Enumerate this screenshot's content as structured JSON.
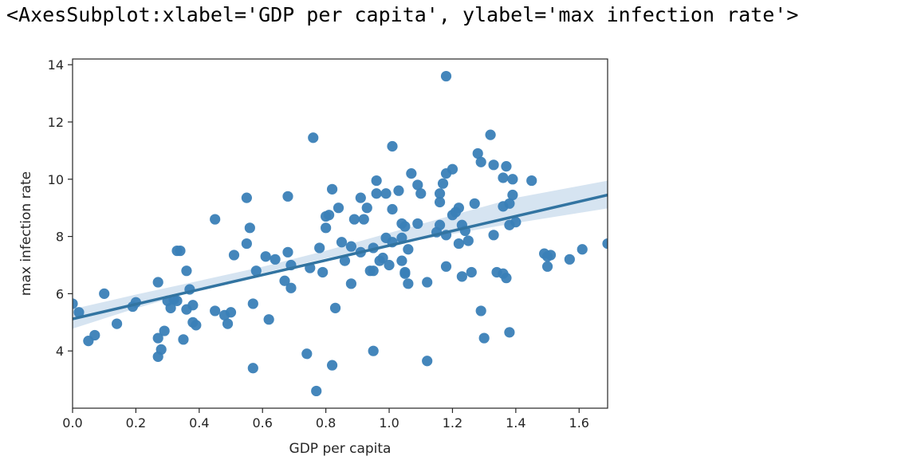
{
  "output_repr": "<AxesSubplot:xlabel='GDP per capita', ylabel='max infection rate'>",
  "chart_data": {
    "type": "scatter",
    "title": "",
    "xlabel": "GDP per capita",
    "ylabel": "max infection rate",
    "xlim": [
      0.0,
      1.69
    ],
    "ylim": [
      2.0,
      14.2
    ],
    "xticks": [
      "0.0",
      "0.2",
      "0.4",
      "0.6",
      "0.8",
      "1.0",
      "1.2",
      "1.4",
      "1.6"
    ],
    "yticks": [
      "4",
      "6",
      "8",
      "10",
      "12",
      "14"
    ],
    "grid": false,
    "legend": "none",
    "colors": {
      "points": "#3a7fb7",
      "regression_line": "#3274a1",
      "confidence_band": "#c8dbec"
    },
    "regression": {
      "x": [
        0.0,
        1.69
      ],
      "y": [
        5.12,
        9.45
      ]
    },
    "confidence_band": {
      "x": [
        0.0,
        0.2,
        0.4,
        0.6,
        0.8,
        1.0,
        1.2,
        1.4,
        1.69
      ],
      "lower": [
        4.78,
        5.49,
        6.13,
        6.72,
        7.24,
        7.69,
        8.09,
        8.47,
        8.98
      ],
      "upper": [
        5.46,
        5.97,
        6.45,
        6.94,
        7.5,
        8.12,
        8.74,
        9.35,
        9.95
      ]
    },
    "points": [
      [
        0.0,
        5.65
      ],
      [
        0.02,
        5.35
      ],
      [
        0.05,
        4.35
      ],
      [
        0.07,
        4.55
      ],
      [
        0.1,
        6.0
      ],
      [
        0.14,
        4.95
      ],
      [
        0.19,
        5.55
      ],
      [
        0.2,
        5.7
      ],
      [
        0.27,
        4.45
      ],
      [
        0.27,
        3.8
      ],
      [
        0.28,
        4.05
      ],
      [
        0.27,
        6.4
      ],
      [
        0.29,
        4.7
      ],
      [
        0.3,
        5.75
      ],
      [
        0.31,
        5.5
      ],
      [
        0.32,
        5.8
      ],
      [
        0.33,
        5.75
      ],
      [
        0.33,
        7.5
      ],
      [
        0.34,
        7.5
      ],
      [
        0.35,
        4.4
      ],
      [
        0.36,
        6.8
      ],
      [
        0.36,
        5.45
      ],
      [
        0.37,
        6.15
      ],
      [
        0.38,
        5.6
      ],
      [
        0.38,
        5.0
      ],
      [
        0.39,
        4.9
      ],
      [
        0.45,
        8.6
      ],
      [
        0.45,
        5.4
      ],
      [
        0.48,
        5.25
      ],
      [
        0.49,
        4.95
      ],
      [
        0.5,
        5.35
      ],
      [
        0.51,
        7.35
      ],
      [
        0.55,
        9.35
      ],
      [
        0.55,
        7.75
      ],
      [
        0.56,
        8.3
      ],
      [
        0.57,
        5.65
      ],
      [
        0.57,
        3.4
      ],
      [
        0.58,
        6.8
      ],
      [
        0.61,
        7.3
      ],
      [
        0.62,
        5.1
      ],
      [
        0.64,
        7.2
      ],
      [
        0.67,
        6.45
      ],
      [
        0.68,
        9.4
      ],
      [
        0.68,
        7.45
      ],
      [
        0.69,
        6.2
      ],
      [
        0.69,
        7.0
      ],
      [
        0.74,
        3.9
      ],
      [
        0.75,
        6.9
      ],
      [
        0.76,
        11.45
      ],
      [
        0.77,
        2.6
      ],
      [
        0.78,
        7.6
      ],
      [
        0.79,
        6.75
      ],
      [
        0.8,
        8.7
      ],
      [
        0.8,
        8.3
      ],
      [
        0.81,
        8.75
      ],
      [
        0.82,
        3.5
      ],
      [
        0.82,
        9.65
      ],
      [
        0.83,
        5.5
      ],
      [
        0.84,
        9.0
      ],
      [
        0.85,
        7.8
      ],
      [
        0.86,
        7.15
      ],
      [
        0.88,
        7.65
      ],
      [
        0.88,
        6.35
      ],
      [
        0.89,
        8.6
      ],
      [
        0.91,
        9.35
      ],
      [
        0.91,
        7.45
      ],
      [
        0.92,
        8.6
      ],
      [
        0.93,
        9.0
      ],
      [
        0.94,
        6.8
      ],
      [
        0.95,
        4.0
      ],
      [
        0.95,
        7.6
      ],
      [
        0.95,
        6.8
      ],
      [
        0.96,
        9.95
      ],
      [
        0.96,
        9.5
      ],
      [
        0.97,
        7.15
      ],
      [
        0.98,
        7.25
      ],
      [
        0.99,
        9.5
      ],
      [
        0.99,
        7.95
      ],
      [
        1.0,
        7.0
      ],
      [
        1.01,
        11.15
      ],
      [
        1.01,
        8.95
      ],
      [
        1.01,
        7.8
      ],
      [
        1.03,
        9.6
      ],
      [
        1.04,
        7.15
      ],
      [
        1.04,
        8.45
      ],
      [
        1.04,
        7.95
      ],
      [
        1.05,
        8.35
      ],
      [
        1.05,
        6.7
      ],
      [
        1.05,
        6.75
      ],
      [
        1.06,
        6.35
      ],
      [
        1.06,
        7.55
      ],
      [
        1.07,
        10.2
      ],
      [
        1.09,
        8.45
      ],
      [
        1.09,
        9.8
      ],
      [
        1.1,
        9.5
      ],
      [
        1.12,
        6.4
      ],
      [
        1.12,
        3.65
      ],
      [
        1.15,
        8.15
      ],
      [
        1.16,
        9.5
      ],
      [
        1.16,
        9.2
      ],
      [
        1.16,
        8.4
      ],
      [
        1.17,
        9.85
      ],
      [
        1.18,
        13.6
      ],
      [
        1.18,
        10.2
      ],
      [
        1.18,
        8.05
      ],
      [
        1.18,
        6.95
      ],
      [
        1.2,
        10.35
      ],
      [
        1.2,
        8.75
      ],
      [
        1.21,
        8.85
      ],
      [
        1.22,
        9.0
      ],
      [
        1.22,
        7.75
      ],
      [
        1.23,
        6.6
      ],
      [
        1.23,
        8.4
      ],
      [
        1.24,
        8.2
      ],
      [
        1.25,
        7.85
      ],
      [
        1.26,
        6.75
      ],
      [
        1.27,
        9.15
      ],
      [
        1.28,
        10.9
      ],
      [
        1.29,
        10.6
      ],
      [
        1.29,
        5.4
      ],
      [
        1.3,
        4.45
      ],
      [
        1.32,
        11.55
      ],
      [
        1.33,
        8.05
      ],
      [
        1.33,
        10.5
      ],
      [
        1.34,
        6.75
      ],
      [
        1.36,
        10.05
      ],
      [
        1.36,
        9.05
      ],
      [
        1.36,
        6.7
      ],
      [
        1.37,
        10.45
      ],
      [
        1.37,
        6.55
      ],
      [
        1.38,
        9.15
      ],
      [
        1.38,
        8.4
      ],
      [
        1.38,
        4.65
      ],
      [
        1.39,
        10.0
      ],
      [
        1.39,
        9.45
      ],
      [
        1.4,
        8.5
      ],
      [
        1.45,
        9.95
      ],
      [
        1.49,
        7.4
      ],
      [
        1.5,
        7.3
      ],
      [
        1.5,
        6.95
      ],
      [
        1.51,
        7.35
      ],
      [
        1.57,
        7.2
      ],
      [
        1.61,
        7.55
      ],
      [
        1.69,
        7.75
      ]
    ]
  }
}
